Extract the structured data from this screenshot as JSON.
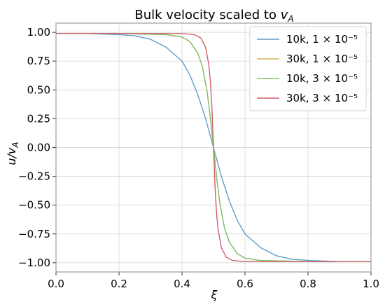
{
  "chart_data": {
    "type": "line",
    "title": "Bulk velocity scaled to v_A",
    "xlabel": "ξ",
    "ylabel": "u/v_A",
    "xlim": [
      0.0,
      1.0
    ],
    "ylim": [
      -1.08,
      1.08
    ],
    "xticks": [
      0.0,
      0.2,
      0.4,
      0.6,
      0.8,
      1.0
    ],
    "xtick_labels": [
      "0.0",
      "0.2",
      "0.4",
      "0.6",
      "0.8",
      "1.0"
    ],
    "yticks": [
      1.0,
      0.75,
      0.5,
      0.25,
      0.0,
      -0.25,
      -0.5,
      -0.75,
      -1.0
    ],
    "ytick_labels": [
      "1.00",
      "0.75",
      "0.50",
      "0.25",
      "0.00",
      "−0.25",
      "−0.50",
      "−0.75",
      "−1.00"
    ],
    "grid": true,
    "legend_position": "top-right",
    "series": [
      {
        "name": "10k, 1 × 10⁻⁵",
        "color": "#5f9ec6",
        "x": [
          0.0,
          0.1,
          0.2,
          0.25,
          0.3,
          0.35,
          0.4,
          0.425,
          0.45,
          0.475,
          0.5,
          0.525,
          0.55,
          0.575,
          0.6,
          0.65,
          0.7,
          0.75,
          0.8,
          0.9,
          1.0
        ],
        "y": [
          0.99,
          0.99,
          0.98,
          0.97,
          0.94,
          0.87,
          0.75,
          0.63,
          0.46,
          0.25,
          0.0,
          -0.25,
          -0.46,
          -0.63,
          -0.75,
          -0.87,
          -0.94,
          -0.97,
          -0.98,
          -0.99,
          -0.99
        ]
      },
      {
        "name": "30k, 1 × 10⁻⁵",
        "color": "#d4b35f",
        "x": [
          0.0,
          0.2,
          0.35,
          0.4,
          0.425,
          0.45,
          0.465,
          0.48,
          0.49,
          0.5,
          0.51,
          0.52,
          0.535,
          0.55,
          0.575,
          0.6,
          0.65,
          0.8,
          1.0
        ],
        "y": [
          0.99,
          0.99,
          0.98,
          0.96,
          0.92,
          0.82,
          0.7,
          0.48,
          0.26,
          0.0,
          -0.26,
          -0.48,
          -0.7,
          -0.82,
          -0.92,
          -0.96,
          -0.98,
          -0.99,
          -0.99
        ]
      },
      {
        "name": "10k, 3 × 10⁻⁵",
        "color": "#84c06a",
        "x": [
          0.0,
          0.2,
          0.35,
          0.4,
          0.425,
          0.45,
          0.465,
          0.48,
          0.49,
          0.5,
          0.51,
          0.52,
          0.535,
          0.55,
          0.575,
          0.6,
          0.65,
          0.8,
          1.0
        ],
        "y": [
          0.99,
          0.99,
          0.98,
          0.96,
          0.92,
          0.82,
          0.7,
          0.48,
          0.26,
          0.0,
          -0.26,
          -0.48,
          -0.7,
          -0.82,
          -0.92,
          -0.96,
          -0.98,
          -0.99,
          -0.99
        ]
      },
      {
        "name": "30k, 3 × 10⁻⁵",
        "color": "#cf5f6a",
        "x": [
          0.0,
          0.2,
          0.4,
          0.44,
          0.46,
          0.475,
          0.485,
          0.49,
          0.495,
          0.5,
          0.505,
          0.51,
          0.515,
          0.525,
          0.54,
          0.56,
          0.6,
          0.8,
          1.0
        ],
        "y": [
          0.99,
          0.99,
          0.99,
          0.98,
          0.95,
          0.87,
          0.72,
          0.58,
          0.35,
          0.0,
          -0.35,
          -0.58,
          -0.72,
          -0.87,
          -0.95,
          -0.98,
          -0.99,
          -0.99,
          -0.99
        ]
      }
    ]
  }
}
